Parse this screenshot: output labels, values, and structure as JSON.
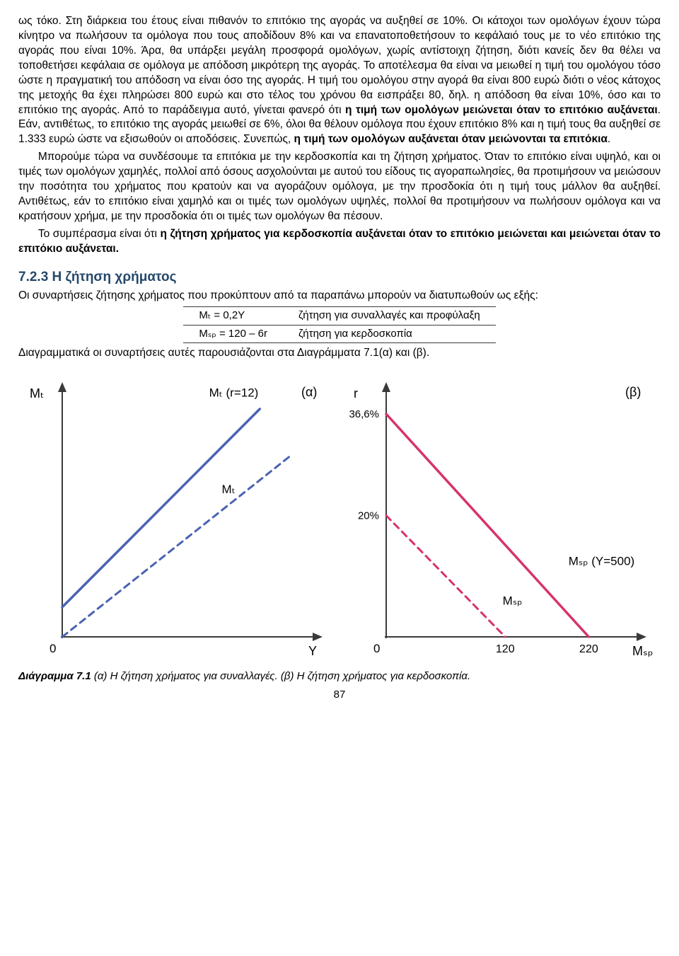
{
  "text": {
    "para1": "ως τόκο. Στη διάρκεια του έτους είναι πιθανόν το επιτόκιο της αγοράς να αυξηθεί σε 10%. Οι κάτοχοι των ομολόγων έχουν τώρα κίνητρο να πωλήσουν τα ομόλογα που τους αποδίδουν 8% και να επανατοποθετήσουν το κεφάλαιό τους με το νέο επιτόκιο της αγοράς που είναι 10%. Άρα, θα υπάρξει μεγάλη προσφορά ομολόγων, χωρίς αντίστοιχη ζήτηση, διότι κανείς δεν θα θέλει να τοποθετήσει κεφάλαια σε ομόλογα με απόδοση μικρότερη της αγοράς. Το αποτέλεσμα θα είναι να μειωθεί η τιμή του ομολόγου τόσο ώστε η πραγματική του απόδοση να είναι όσο της αγοράς. Η τιμή του ομολόγου στην αγορά θα είναι 800 ευρώ διότι ο νέος κάτοχος της μετοχής θα έχει πληρώσει 800 ευρώ και στο τέλος του χρόνου θα εισπράξει 80, δηλ. η απόδοση θα είναι 10%, όσο και το επιτόκιο της αγοράς. Από το παράδειγμα αυτό, γίνεται φανερό ότι ",
    "para1_bold1": "η τιμή των ομολόγων μειώνεται όταν το επιτόκιο αυξάνεται",
    "para1_mid": ". Εάν, αντιθέτως, το επιτόκιο της αγοράς μειωθεί σε 6%, όλοι θα θέλουν ομόλογα που έχουν επιτόκιο 8% και η τιμή τους θα αυξηθεί σε 1.333 ευρώ ώστε να εξισωθούν οι αποδόσεις. Συνεπώς, ",
    "para1_bold2": "η τιμή των ομολόγων αυξάνεται όταν μειώνονται τα επιτόκια",
    "para1_end": ".",
    "para2": "Μπορούμε τώρα να συνδέσουμε τα επιτόκια με την κερδοσκοπία και τη ζήτηση χρήματος. Όταν το επιτόκιο είναι υψηλό, και οι τιμές των ομολόγων χαμηλές, πολλοί από όσους ασχολούνται με αυτού του είδους τις αγοραπωλησίες, θα προτιμήσουν να μειώσουν την ποσότητα του χρήματος που κρατούν και να αγοράζουν ομόλογα, με την προσδοκία ότι η τιμή τους μάλλον θα αυξηθεί. Αντιθέτως, εάν το επιτόκιο είναι χαμηλό και οι τιμές των ομολόγων υψηλές, πολλοί θα προτιμήσουν να πωλήσουν ομόλογα και να κρατήσουν χρήμα, με την προσδοκία ότι οι τιμές των ομολόγων θα πέσουν.",
    "para3_lead": "Το συμπέρασμα είναι ότι ",
    "para3_bold": "η ζήτηση χρήματος για κερδοσκοπία αυξάνεται όταν το επιτόκιο μειώνεται και μειώνεται όταν το επιτόκιο αυξάνεται.",
    "section_head": "7.2.3 Η ζήτηση χρήματος",
    "para4": "Οι συναρτήσεις ζήτησης χρήματος που προκύπτουν από τα παραπάνω μπορούν να διατυπωθούν ως εξής:",
    "eq_t_lhs": "Mₜ = 0,2Y",
    "eq_t_rhs": "ζήτηση για συναλλαγές και προφύλαξη",
    "eq_sp_lhs": "Mₛₚ = 120 – 6r",
    "eq_sp_rhs": "ζήτηση για κερδοσκοπία",
    "para5": "Διαγραμματικά οι συναρτήσεις αυτές παρουσιάζονται στα Διαγράμματα 7.1(α) και (β).",
    "caption_b": "Διάγραμμα 7.1",
    "caption_rest": " (α) Η ζήτηση χρήματος για συναλλαγές. (β) Η ζήτηση χρήματος για κερδοσκοπία.",
    "page_number": "87"
  },
  "chartA": {
    "title": "(α)",
    "y_axis_label": "Mₜ",
    "x_axis_label": "Y",
    "origin_label": "0",
    "axis_color": "#3a3a3a",
    "axis_width": 2,
    "lines": [
      {
        "label": "Mₜ (r=12)",
        "color": "#4a62b3",
        "width": 3.5,
        "dash": null,
        "x1": 0,
        "y1": 0.12,
        "x2": 0.78,
        "y2": 0.92,
        "label_x": 0.58,
        "label_y": 0.97
      },
      {
        "label": "Mₜ",
        "color": "#4a62b3",
        "width": 3,
        "dash": "9,7",
        "x1": 0,
        "y1": 0.0,
        "x2": 0.9,
        "y2": 0.73,
        "label_x": 0.63,
        "label_y": 0.58
      }
    ]
  },
  "chartB": {
    "title": "(β)",
    "y_axis_label": "r",
    "x_axis_label": "Mₛₚ",
    "origin_label": "0",
    "axis_color": "#3a3a3a",
    "axis_width": 2,
    "x_ticks": [
      {
        "val": "120",
        "pos": 0.47
      },
      {
        "val": "220",
        "pos": 0.8
      }
    ],
    "y_ticks": [
      {
        "val": "36,6%",
        "pos": 0.9
      },
      {
        "val": "20%",
        "pos": 0.49
      }
    ],
    "lines": [
      {
        "label": "Mₛₚ (Y=500)",
        "color": "#d6336c",
        "width": 3.5,
        "dash": null,
        "x1": 0,
        "y1": 0.9,
        "x2": 0.8,
        "y2": 0.0,
        "label_x": 0.72,
        "label_y": 0.29
      },
      {
        "label": "Mₛₚ",
        "color": "#d6336c",
        "width": 3,
        "dash": "9,7",
        "x1": 0,
        "y1": 0.49,
        "x2": 0.47,
        "y2": 0.0,
        "label_x": 0.46,
        "label_y": 0.13
      }
    ]
  }
}
